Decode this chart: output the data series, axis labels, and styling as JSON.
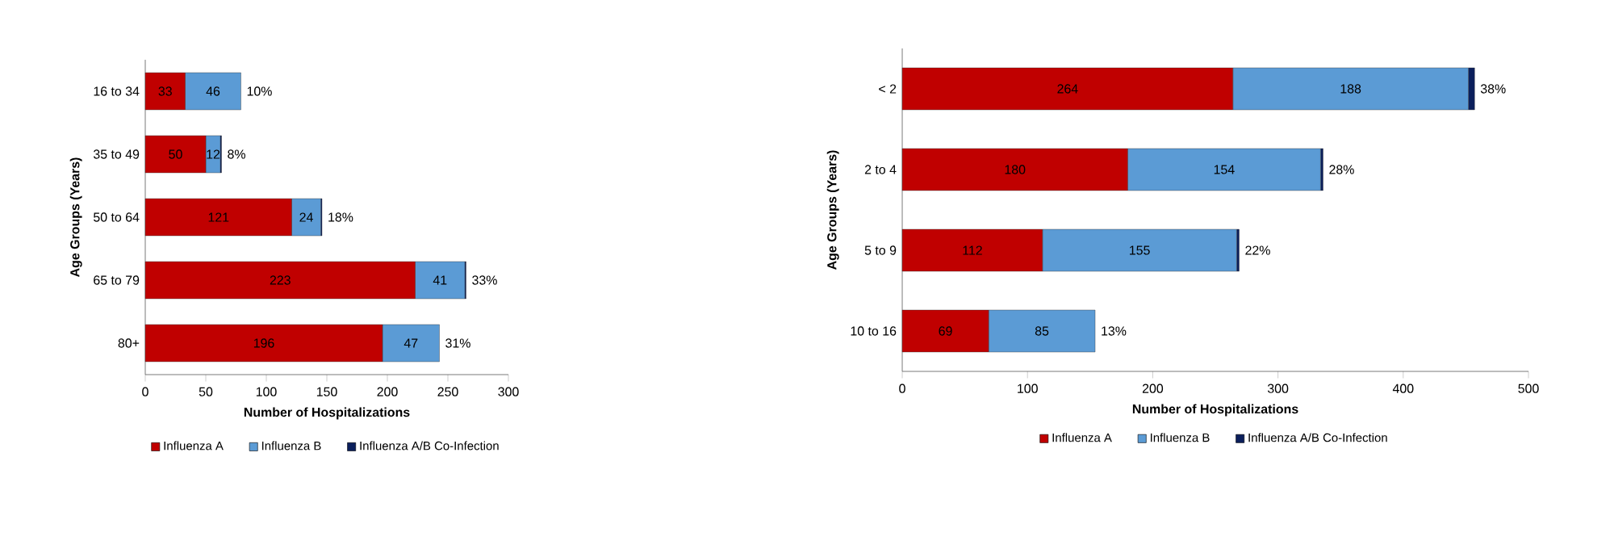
{
  "chart_data": [
    {
      "type": "bar",
      "orientation": "horizontal",
      "stacked": true,
      "categories": [
        "16 to 34",
        "35 to 49",
        "50 to 64",
        "65 to 79",
        "80+"
      ],
      "series": [
        {
          "name": "Influenza A",
          "color": "#c00000",
          "values": [
            33,
            50,
            121,
            223,
            196
          ],
          "value_labels": [
            "33",
            "50",
            "121",
            "223",
            "196"
          ]
        },
        {
          "name": "Influenza B",
          "color": "#5b9bd5",
          "values": [
            46,
            12,
            24,
            41,
            47
          ],
          "value_labels": [
            "46",
            "12",
            "24",
            "41",
            "47"
          ]
        },
        {
          "name": "Influenza A/B Co-Infection",
          "color": "#0b1f5c",
          "values": [
            0,
            1,
            1,
            1,
            0
          ]
        }
      ],
      "xlabel": "Number of Hospitalizations",
      "ylabel": "Age Groups (Years)",
      "xlim": [
        0,
        300
      ],
      "xticks": [
        0,
        50,
        100,
        150,
        200,
        250,
        300
      ],
      "legend": "bottom",
      "grid": false,
      "annotations": [
        {
          "text": "10%",
          "x": 79,
          "y": "16 to 34"
        },
        {
          "text": "8%",
          "x": 63,
          "y": "35 to 49"
        },
        {
          "text": "18%",
          "x": 146,
          "y": "50 to 64"
        },
        {
          "text": "33%",
          "x": 265,
          "y": "65 to 79"
        },
        {
          "text": "31%",
          "x": 243,
          "y": "80+"
        }
      ]
    },
    {
      "type": "bar",
      "orientation": "horizontal",
      "stacked": true,
      "categories": [
        "< 2",
        "2 to 4",
        "5 to 9",
        "10 to 16"
      ],
      "series": [
        {
          "name": "Influenza A",
          "color": "#c00000",
          "values": [
            264,
            180,
            112,
            69
          ],
          "value_labels": [
            "264",
            "180",
            "112",
            "69"
          ]
        },
        {
          "name": "Influenza B",
          "color": "#5b9bd5",
          "values": [
            188,
            154,
            155,
            85
          ],
          "value_labels": [
            "188",
            "154",
            "155",
            "85"
          ]
        },
        {
          "name": "Influenza A/B Co-Infection",
          "color": "#0b1f5c",
          "values": [
            5,
            2,
            2,
            0
          ]
        }
      ],
      "xlabel": "Number of Hospitalizations",
      "ylabel": "Age Groups (Years)",
      "xlim": [
        0,
        500
      ],
      "xticks": [
        0,
        100,
        200,
        300,
        400,
        500
      ],
      "legend": "bottom",
      "grid": false,
      "annotations": [
        {
          "text": "38%",
          "x": 457,
          "y": "< 2"
        },
        {
          "text": "28%",
          "x": 336,
          "y": "2 to 4"
        },
        {
          "text": "22%",
          "x": 269,
          "y": "5 to 9"
        },
        {
          "text": "13%",
          "x": 154,
          "y": "10 to 16"
        }
      ]
    }
  ]
}
